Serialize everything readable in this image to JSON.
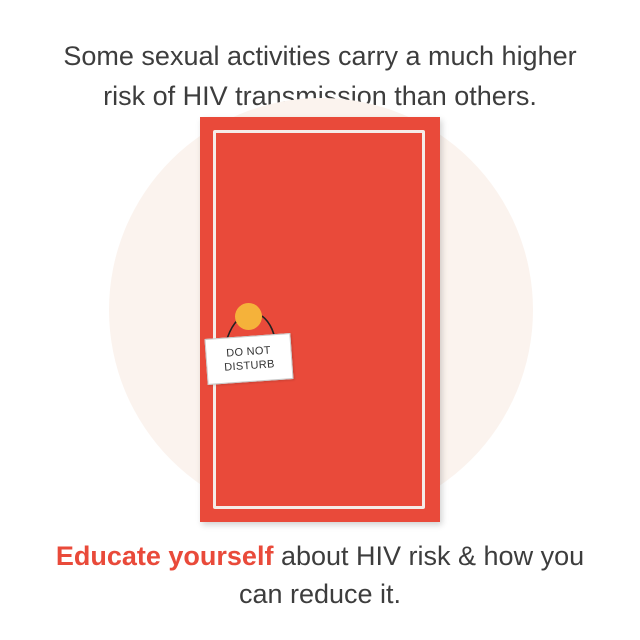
{
  "headline": {
    "line1": "Some sexual activities carry a much higher",
    "line2": "risk of HIV transmission than others."
  },
  "sign": {
    "line1": "DO NOT",
    "line2": "DISTURB"
  },
  "footer": {
    "emphasis": "Educate yourself",
    "line1_rest": " about HIV risk & how you",
    "line2": "can reduce it."
  },
  "colors": {
    "door": "#e94a3a",
    "accent": "#e94a3a",
    "knob": "#f5b23a",
    "circle": "#fbf3ee",
    "text": "#3d3d3d"
  },
  "icons": {
    "door": "door-icon",
    "knob": "door-knob-icon",
    "sign": "door-hanger-sign"
  }
}
